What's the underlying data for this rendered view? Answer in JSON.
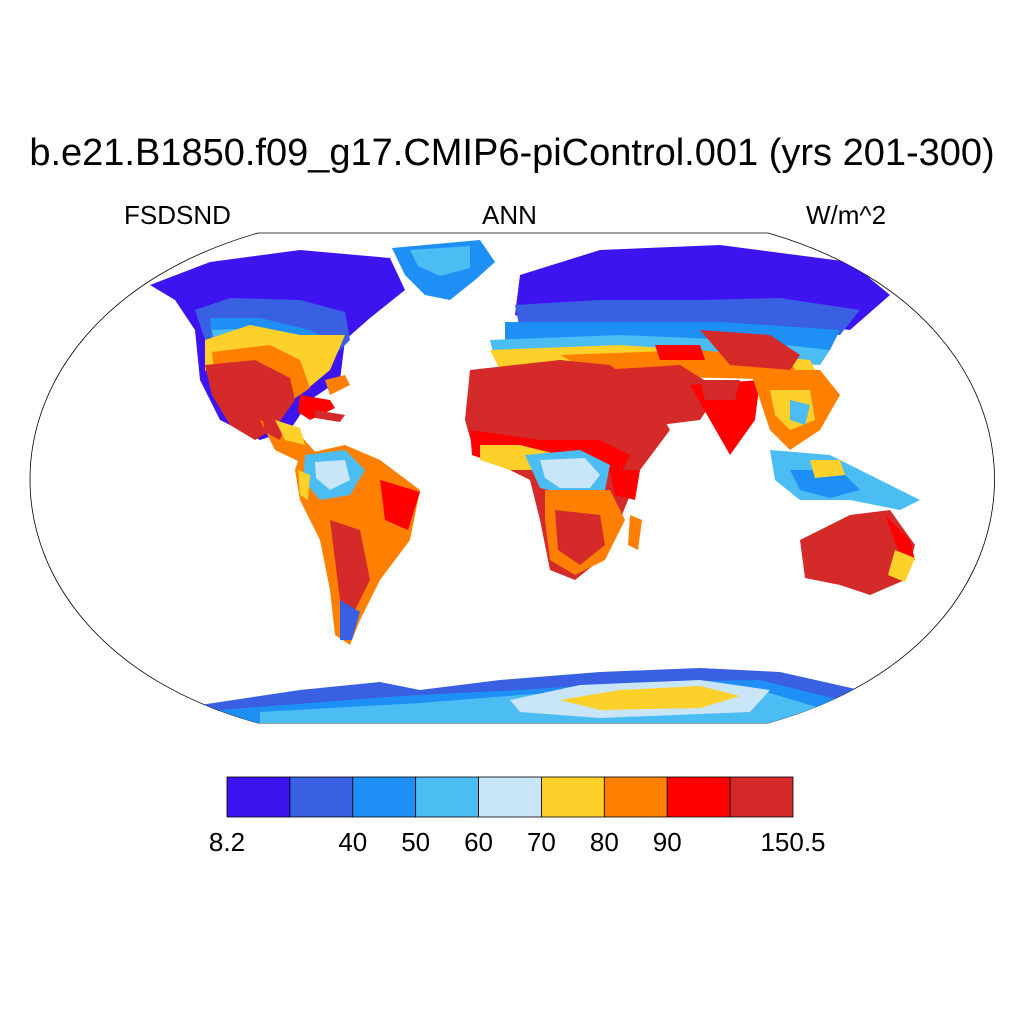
{
  "title": "b.e21.B1850.f09_g17.CMIP6-piControl.001 (yrs 201-300)",
  "left_string": "FSDSND",
  "center_string": "ANN",
  "right_string": "W/m^2",
  "colorbar": {
    "colors": [
      "#3d14f0",
      "#395fe2",
      "#1e8ff5",
      "#4bbdf2",
      "#c8e6f8",
      "#fed02a",
      "#ff8000",
      "#ff0000",
      "#d42a2a"
    ],
    "labels": [
      {
        "text": "8.2",
        "boundary": 0
      },
      {
        "text": "40",
        "boundary": 2
      },
      {
        "text": "50",
        "boundary": 3
      },
      {
        "text": "60",
        "boundary": 4
      },
      {
        "text": "70",
        "boundary": 5
      },
      {
        "text": "80",
        "boundary": 6
      },
      {
        "text": "90",
        "boundary": 7
      },
      {
        "text": "150.5",
        "boundary": 9
      }
    ]
  }
}
